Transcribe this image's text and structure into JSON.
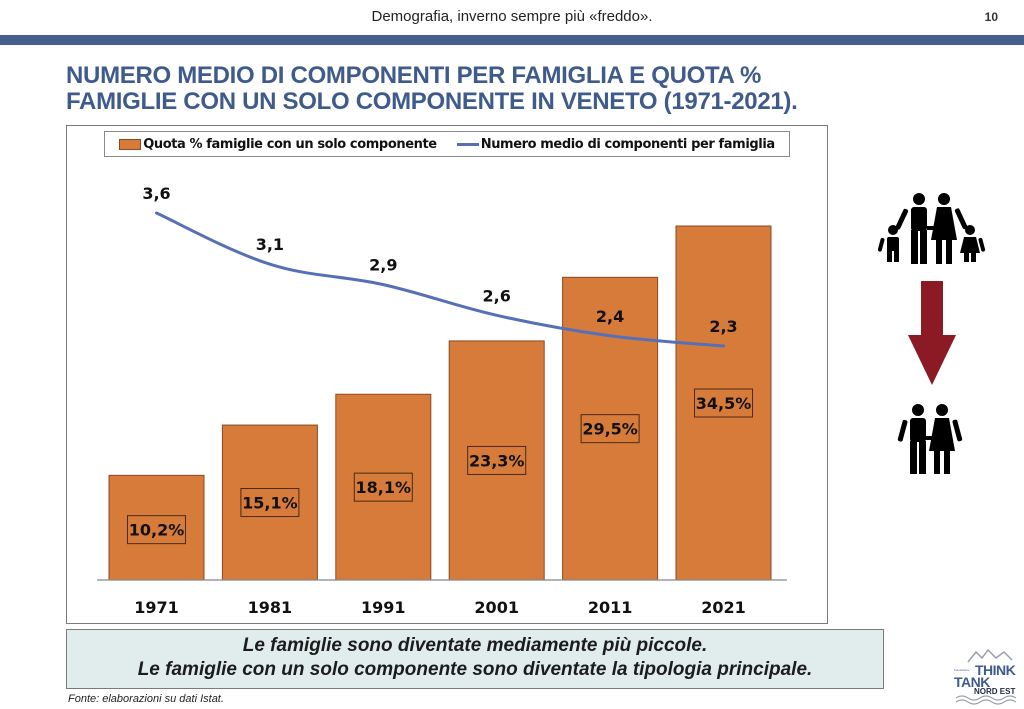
{
  "header": {
    "title": "Demografia, inverno sempre più «freddo».",
    "page_number": "10"
  },
  "main_title": {
    "line1": "NUMERO MEDIO DI COMPONENTI PER FAMIGLIA E QUOTA %",
    "line2": "FAMIGLIE CON UN SOLO COMPONENTE IN VENETO (1971-2021)."
  },
  "colors": {
    "header_bar": "#46608e",
    "title": "#3f5b8c",
    "bar_fill": "#d67b3a",
    "bar_border": "#8a4a22",
    "line": "#5670b8",
    "arrow": "#8b1a24",
    "summary_bg": "#e1eced"
  },
  "chart_data": {
    "type": "bar+line",
    "categories": [
      "1971",
      "1981",
      "1991",
      "2001",
      "2011",
      "2021"
    ],
    "series": [
      {
        "name": "Quota % famiglie con un solo componente",
        "type": "bar",
        "values": [
          10.2,
          15.1,
          18.1,
          23.3,
          29.5,
          34.5
        ],
        "labels": [
          "10,2%",
          "15,1%",
          "18,1%",
          "23,3%",
          "29,5%",
          "34,5%"
        ]
      },
      {
        "name": "Numero medio di componenti per famiglia",
        "type": "line",
        "values": [
          3.6,
          3.1,
          2.9,
          2.6,
          2.4,
          2.3
        ],
        "labels": [
          "3,6",
          "3,1",
          "2,9",
          "2,6",
          "2,4",
          "2,3"
        ]
      }
    ],
    "legend": {
      "position": "top",
      "entries": [
        "Quota % famiglie con un solo componente",
        "Numero medio di componenti per famiglia"
      ]
    },
    "title": "",
    "xlabel": "",
    "ylabel": "",
    "ylim_bar": [
      0,
      35
    ],
    "ylim_line": [
      0,
      5.7
    ],
    "grid": false
  },
  "icons": {
    "top": "family-of-four-icon",
    "arrow": "arrow-down-icon",
    "bottom": "couple-icon"
  },
  "summary": {
    "line1": "Le famiglie sono diventate mediamente più piccole.",
    "line2": "Le famiglie con un solo componente sono diventate la tipologia principale."
  },
  "source": "Fonte: elaborazioni su dati Istat.",
  "logo": {
    "small": "Fondazione",
    "think": "THINK",
    "tank": "TANK",
    "nord_est": "NORD EST"
  }
}
